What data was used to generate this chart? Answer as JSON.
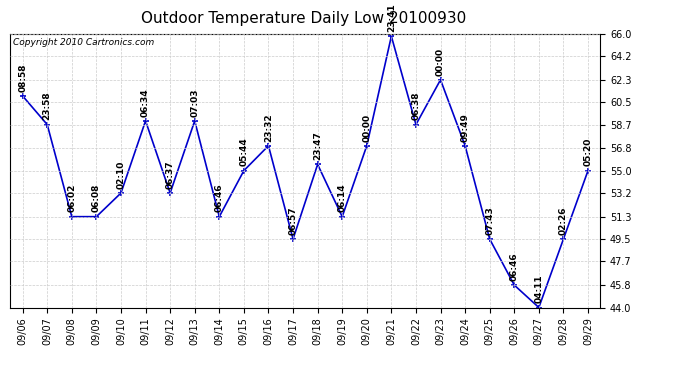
{
  "title": "Outdoor Temperature Daily Low 20100930",
  "copyright": "Copyright 2010 Cartronics.com",
  "line_color": "#0000cc",
  "marker_color": "#0000cc",
  "background_color": "#ffffff",
  "grid_color": "#cccccc",
  "dates": [
    "09/06",
    "09/07",
    "09/08",
    "09/09",
    "09/10",
    "09/11",
    "09/12",
    "09/13",
    "09/14",
    "09/15",
    "09/16",
    "09/17",
    "09/18",
    "09/19",
    "09/20",
    "09/21",
    "09/22",
    "09/23",
    "09/24",
    "09/25",
    "09/26",
    "09/27",
    "09/28",
    "09/29"
  ],
  "values": [
    61.0,
    58.7,
    51.3,
    51.3,
    53.2,
    59.0,
    53.2,
    59.0,
    51.3,
    55.0,
    57.0,
    49.5,
    55.5,
    51.3,
    57.0,
    65.8,
    58.7,
    62.3,
    57.0,
    49.5,
    45.8,
    44.0,
    49.5,
    55.0
  ],
  "time_labels": [
    "08:58",
    "23:58",
    "06:02",
    "06:08",
    "02:10",
    "06:34",
    "06:37",
    "07:03",
    "06:46",
    "05:44",
    "23:32",
    "06:57",
    "23:47",
    "06:14",
    "00:00",
    "23:41",
    "06:38",
    "00:00",
    "09:49",
    "07:43",
    "06:46",
    "04:11",
    "02:26",
    "05:20"
  ],
  "ylim": [
    44.0,
    66.0
  ],
  "yticks": [
    44.0,
    45.8,
    47.7,
    49.5,
    51.3,
    53.2,
    55.0,
    56.8,
    58.7,
    60.5,
    62.3,
    64.2,
    66.0
  ],
  "title_fontsize": 11,
  "tick_fontsize": 7,
  "label_fontsize": 6.5,
  "copyright_fontsize": 6.5
}
